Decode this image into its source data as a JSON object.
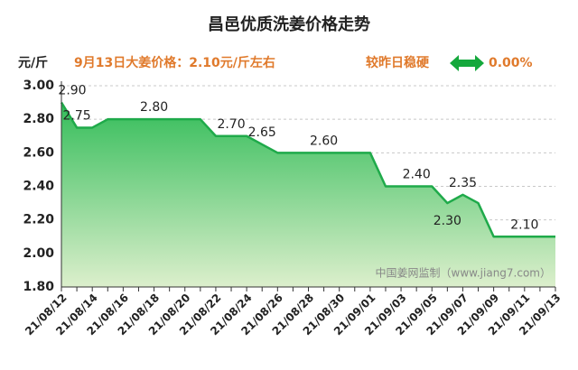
{
  "chart_data": {
    "type": "area",
    "title": "昌邑优质洗姜价格走势",
    "y_label": "元/斤",
    "annotation": "9月13日大姜价格：2.10元/斤左右",
    "change_text": "较昨日稳硬",
    "change_value": "0.00%",
    "watermark": "中国姜网监制（www.jiang7.com）",
    "categories": [
      "21/08/12",
      null,
      "21/08/14",
      null,
      "21/08/16",
      null,
      "21/08/18",
      null,
      "21/08/20",
      null,
      "21/08/22",
      null,
      "21/08/24",
      null,
      "21/08/26",
      null,
      "21/08/28",
      null,
      "21/08/30",
      null,
      "21/09/01",
      null,
      "21/09/03",
      null,
      "21/09/05",
      null,
      "21/09/07",
      null,
      "21/09/09",
      null,
      "21/09/11",
      null,
      "21/09/13"
    ],
    "values": [
      2.9,
      2.75,
      2.75,
      2.8,
      2.8,
      2.8,
      2.8,
      2.8,
      2.8,
      2.8,
      2.7,
      2.7,
      2.7,
      2.65,
      2.6,
      2.6,
      2.6,
      2.6,
      2.6,
      2.6,
      2.6,
      2.4,
      2.4,
      2.4,
      2.4,
      2.3,
      2.35,
      2.3,
      2.1,
      2.1,
      2.1,
      2.1,
      2.1
    ],
    "value_labels": [
      "2.90",
      "2.75",
      null,
      null,
      null,
      null,
      "2.80",
      null,
      null,
      null,
      null,
      "2.70",
      null,
      "2.65",
      null,
      null,
      null,
      "2.60",
      null,
      null,
      null,
      null,
      null,
      "2.40",
      null,
      "2.30",
      "2.35",
      null,
      null,
      null,
      "2.10",
      null,
      null
    ],
    "color": "#1faa4a",
    "ylim": [
      1.8,
      3.0
    ],
    "yticks": [
      {
        "value": 1.8,
        "label": "1.80"
      },
      {
        "value": 2.0,
        "label": "2.00"
      },
      {
        "value": 2.2,
        "label": "2.20"
      },
      {
        "value": 2.4,
        "label": "2.40"
      },
      {
        "value": 2.6,
        "label": "2.60"
      },
      {
        "value": 2.8,
        "label": "2.80"
      },
      {
        "value": 3.0,
        "label": "3.00"
      }
    ],
    "grid": true
  }
}
